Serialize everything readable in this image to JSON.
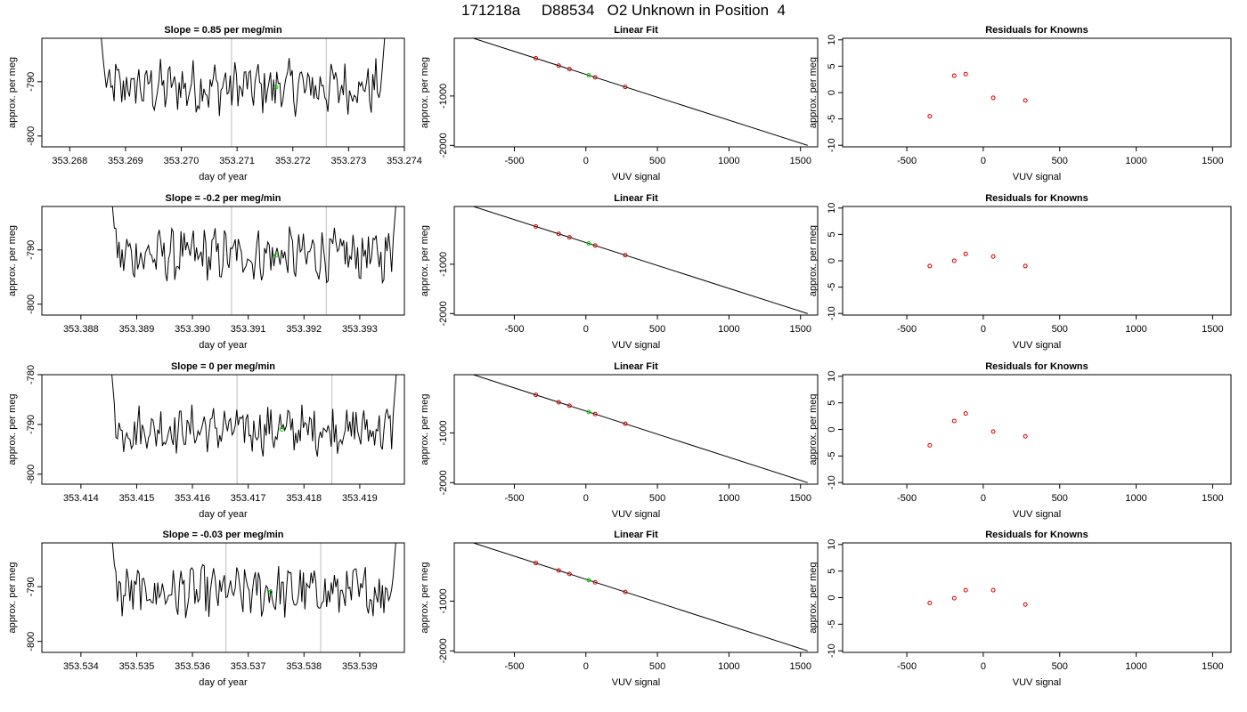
{
  "header": {
    "date": "171218a",
    "sample": "D88534",
    "label": "O2 Unknown in Position  4"
  },
  "colors": {
    "trace": "#000000",
    "unknown_point": "#00cc00",
    "known_point": "#cc0000",
    "vertical_line": "#c8c8c8",
    "fit_line": "#000000"
  },
  "chart_data": [
    {
      "row": 1,
      "panel": "time-series",
      "type": "line",
      "title": "Slope =  0.85  per meg/min",
      "xlabel": "day of year",
      "ylabel": "approx. per meg",
      "xlim": [
        353.2675,
        353.274
      ],
      "ylim": [
        -802,
        -782
      ],
      "xticks": [
        353.268,
        353.269,
        353.27,
        353.271,
        353.272,
        353.273,
        353.274
      ],
      "xtick_labels": [
        "353.268",
        "353.269",
        "353.270",
        "353.271",
        "353.272",
        "353.273",
        "353.274"
      ],
      "yticks": [
        -790,
        -800
      ],
      "ytick_labels": [
        "-790",
        "-800"
      ],
      "vlines": [
        353.2709,
        353.2726
      ],
      "trace_start": 353.2686,
      "trace_end": 353.2736,
      "unknown": {
        "x": 353.2717,
        "y": -791
      }
    },
    {
      "row": 1,
      "panel": "linear-fit",
      "type": "scatter",
      "title": "Linear Fit",
      "xlabel": "VUV signal",
      "ylabel": "approx. per meg",
      "xlim": [
        -920,
        1620
      ],
      "ylim": [
        -2030,
        170
      ],
      "xticks": [
        -500,
        0,
        500,
        1000,
        1500
      ],
      "xtick_labels": [
        "-500",
        "0",
        "500",
        "1000",
        "1500"
      ],
      "yticks": [
        -1000,
        -2000
      ],
      "ytick_labels": [
        "-1000",
        "-2000"
      ],
      "fit": {
        "x0": -830,
        "y0": 210,
        "x1": 1550,
        "y1": -2000
      },
      "knowns_x": [
        -350,
        -190,
        -115,
        65,
        275
      ],
      "unknown_x": 20
    },
    {
      "row": 1,
      "panel": "residuals",
      "type": "scatter",
      "title": "Residuals for Knowns",
      "xlabel": "VUV signal",
      "ylabel": "approx. per meg",
      "xlim": [
        -920,
        1620
      ],
      "ylim": [
        -10.3,
        10.3
      ],
      "xticks": [
        -500,
        0,
        500,
        1000,
        1500
      ],
      "xtick_labels": [
        "-500",
        "0",
        "500",
        "1000",
        "1500"
      ],
      "yticks": [
        10,
        5,
        0,
        -5,
        -10
      ],
      "ytick_labels": [
        "10",
        "5",
        "0",
        "-5",
        "-10"
      ],
      "x": [
        -350,
        -190,
        -115,
        65,
        275
      ],
      "y": [
        -4.5,
        3.2,
        3.5,
        -1.0,
        -1.5
      ]
    },
    {
      "row": 2,
      "panel": "time-series",
      "type": "line",
      "title": "Slope =  -0.2  per meg/min",
      "xlabel": "day of year",
      "ylabel": "approx. per meg",
      "xlim": [
        353.3873,
        353.3938
      ],
      "ylim": [
        -802,
        -782
      ],
      "xticks": [
        353.388,
        353.389,
        353.39,
        353.391,
        353.392,
        353.393
      ],
      "xtick_labels": [
        "353.388",
        "353.389",
        "353.390",
        "353.391",
        "353.392",
        "353.393"
      ],
      "yticks": [
        -790,
        -800
      ],
      "ytick_labels": [
        "-790",
        "-800"
      ],
      "vlines": [
        353.3907,
        353.3924
      ],
      "trace_start": 353.3886,
      "trace_end": 353.3936,
      "unknown": {
        "x": 353.3915,
        "y": -791
      }
    },
    {
      "row": 2,
      "panel": "linear-fit",
      "type": "scatter",
      "title": "Linear Fit",
      "xlabel": "VUV signal",
      "ylabel": "approx. per meg",
      "xlim": [
        -920,
        1620
      ],
      "ylim": [
        -2030,
        170
      ],
      "xticks": [
        -500,
        0,
        500,
        1000,
        1500
      ],
      "xtick_labels": [
        "-500",
        "0",
        "500",
        "1000",
        "1500"
      ],
      "yticks": [
        -1000,
        -2000
      ],
      "ytick_labels": [
        "-1000",
        "-2000"
      ],
      "fit": {
        "x0": -830,
        "y0": 210,
        "x1": 1550,
        "y1": -2000
      },
      "knowns_x": [
        -350,
        -190,
        -115,
        65,
        275
      ],
      "unknown_x": 20
    },
    {
      "row": 2,
      "panel": "residuals",
      "type": "scatter",
      "title": "Residuals for Knowns",
      "xlabel": "VUV signal",
      "ylabel": "approx. per meg",
      "xlim": [
        -920,
        1620
      ],
      "ylim": [
        -10.3,
        10.3
      ],
      "xticks": [
        -500,
        0,
        500,
        1000,
        1500
      ],
      "xtick_labels": [
        "-500",
        "0",
        "500",
        "1000",
        "1500"
      ],
      "yticks": [
        10,
        5,
        0,
        -5,
        -10
      ],
      "ytick_labels": [
        "10",
        "5",
        "0",
        "-5",
        "-10"
      ],
      "x": [
        -350,
        -190,
        -115,
        65,
        275
      ],
      "y": [
        -1.0,
        0.0,
        1.3,
        0.8,
        -1.0
      ]
    },
    {
      "row": 3,
      "panel": "time-series",
      "type": "line",
      "title": "Slope =  0  per meg/min",
      "xlabel": "day of year",
      "ylabel": "approx. per meg",
      "xlim": [
        353.4133,
        353.4198
      ],
      "ylim": [
        -802,
        -780
      ],
      "xticks": [
        353.414,
        353.415,
        353.416,
        353.417,
        353.418,
        353.419
      ],
      "xtick_labels": [
        "353.414",
        "353.415",
        "353.416",
        "353.417",
        "353.418",
        "353.419"
      ],
      "yticks": [
        -780,
        -790,
        -800
      ],
      "ytick_labels": [
        "-780",
        "-790",
        "-800"
      ],
      "vlines": [
        353.4168,
        353.4185
      ],
      "trace_start": 353.4146,
      "trace_end": 353.4196,
      "unknown": {
        "x": 353.4176,
        "y": -791
      }
    },
    {
      "row": 3,
      "panel": "linear-fit",
      "type": "scatter",
      "title": "Linear Fit",
      "xlabel": "VUV signal",
      "ylabel": "approx. per meg",
      "xlim": [
        -920,
        1620
      ],
      "ylim": [
        -2030,
        170
      ],
      "xticks": [
        -500,
        0,
        500,
        1000,
        1500
      ],
      "xtick_labels": [
        "-500",
        "0",
        "500",
        "1000",
        "1500"
      ],
      "yticks": [
        -1000,
        -2000
      ],
      "ytick_labels": [
        "-1000",
        "-2000"
      ],
      "fit": {
        "x0": -830,
        "y0": 210,
        "x1": 1550,
        "y1": -2000
      },
      "knowns_x": [
        -350,
        -190,
        -115,
        65,
        275
      ],
      "unknown_x": 20
    },
    {
      "row": 3,
      "panel": "residuals",
      "type": "scatter",
      "title": "Residuals for Knowns",
      "xlabel": "VUV signal",
      "ylabel": "approx. per meg",
      "xlim": [
        -920,
        1620
      ],
      "ylim": [
        -10.3,
        10.3
      ],
      "xticks": [
        -500,
        0,
        500,
        1000,
        1500
      ],
      "xtick_labels": [
        "-500",
        "0",
        "500",
        "1000",
        "1500"
      ],
      "yticks": [
        10,
        5,
        0,
        -5,
        -10
      ],
      "ytick_labels": [
        "10",
        "5",
        "0",
        "-5",
        "-10"
      ],
      "x": [
        -350,
        -190,
        -115,
        65,
        275
      ],
      "y": [
        -3.0,
        1.6,
        3.0,
        -0.4,
        -1.3
      ]
    },
    {
      "row": 4,
      "panel": "time-series",
      "type": "line",
      "title": "Slope =  -0.03  per meg/min",
      "xlabel": "day of year",
      "ylabel": "approx. per meg",
      "xlim": [
        353.5333,
        353.5398
      ],
      "ylim": [
        -802,
        -782
      ],
      "xticks": [
        353.534,
        353.535,
        353.536,
        353.537,
        353.538,
        353.539
      ],
      "xtick_labels": [
        "353.534",
        "353.535",
        "353.536",
        "353.537",
        "353.538",
        "353.539"
      ],
      "yticks": [
        -790,
        -800
      ],
      "ytick_labels": [
        "-790",
        "-800"
      ],
      "vlines": [
        353.5366,
        353.5383
      ],
      "trace_start": 353.5346,
      "trace_end": 353.5396,
      "unknown": {
        "x": 353.5374,
        "y": -791
      }
    },
    {
      "row": 4,
      "panel": "linear-fit",
      "type": "scatter",
      "title": "Linear Fit",
      "xlabel": "VUV signal",
      "ylabel": "approx. per meg",
      "xlim": [
        -920,
        1620
      ],
      "ylim": [
        -2030,
        170
      ],
      "xticks": [
        -500,
        0,
        500,
        1000,
        1500
      ],
      "xtick_labels": [
        "-500",
        "0",
        "500",
        "1000",
        "1500"
      ],
      "yticks": [
        -1000,
        -2000
      ],
      "ytick_labels": [
        "-1000",
        "-2000"
      ],
      "fit": {
        "x0": -830,
        "y0": 210,
        "x1": 1550,
        "y1": -2000
      },
      "knowns_x": [
        -350,
        -190,
        -115,
        65,
        275
      ],
      "unknown_x": 20
    },
    {
      "row": 4,
      "panel": "residuals",
      "type": "scatter",
      "title": "Residuals for Knowns",
      "xlabel": "VUV signal",
      "ylabel": "approx. per meg",
      "xlim": [
        -920,
        1620
      ],
      "ylim": [
        -10.3,
        10.3
      ],
      "xticks": [
        -500,
        0,
        500,
        1000,
        1500
      ],
      "xtick_labels": [
        "-500",
        "0",
        "500",
        "1000",
        "1500"
      ],
      "yticks": [
        10,
        5,
        0,
        -5,
        -10
      ],
      "ytick_labels": [
        "10",
        "5",
        "0",
        "-5",
        "-10"
      ],
      "x": [
        -350,
        -190,
        -115,
        65,
        275
      ],
      "y": [
        -1.0,
        -0.1,
        1.4,
        1.4,
        -1.3
      ]
    }
  ]
}
